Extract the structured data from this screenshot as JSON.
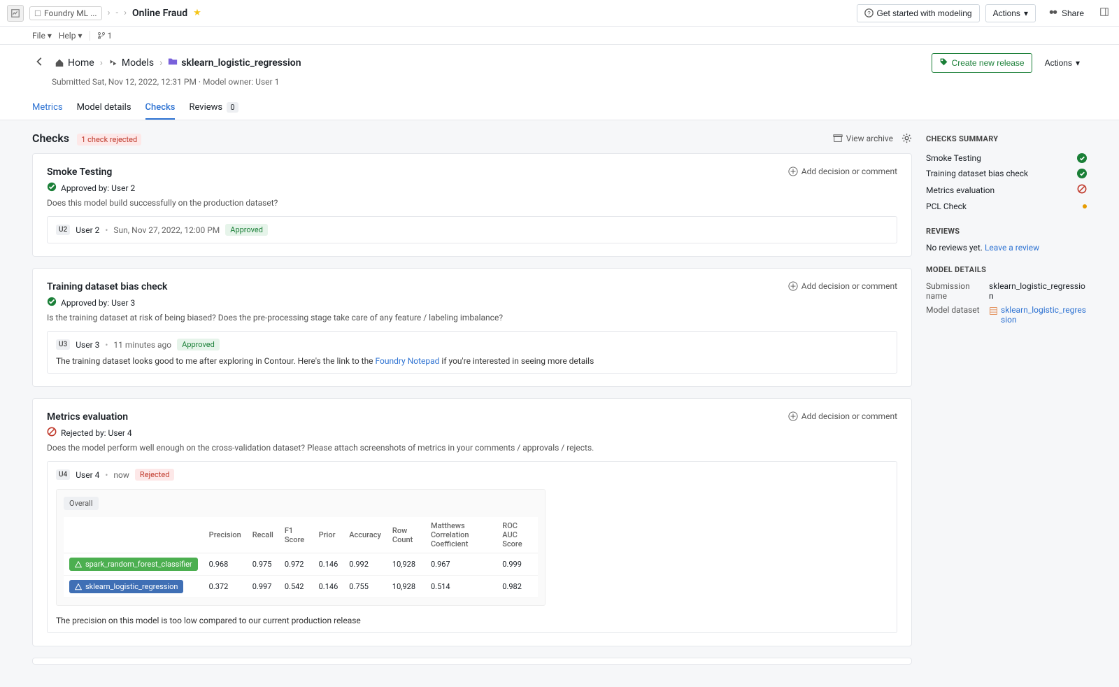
{
  "topbar": {
    "crumb_app": "Foundry ML ...",
    "page": "Online Fraud",
    "get_started": "Get started with modeling",
    "actions": "Actions",
    "share": "Share"
  },
  "menubar": {
    "file": "File",
    "help": "Help",
    "branch_count": "1"
  },
  "header": {
    "home": "Home",
    "models": "Models",
    "model_name": "sklearn_logistic_regression",
    "submitted": "Submitted Sat, Nov 12, 2022, 12:31 PM · Model owner: User 1",
    "create_release": "Create new release",
    "actions": "Actions"
  },
  "tabs": {
    "metrics": "Metrics",
    "model_details": "Model details",
    "checks": "Checks",
    "reviews": "Reviews",
    "reviews_count": "0"
  },
  "section": {
    "title": "Checks",
    "rejected_badge": "1 check rejected",
    "view_archive": "View archive"
  },
  "checks": {
    "smoke": {
      "title": "Smoke Testing",
      "approval": "Approved by: User 2",
      "desc": "Does this model build successfully on the production dataset?",
      "comment": {
        "avatar": "U2",
        "user": "User 2",
        "time": "Sun, Nov 27, 2022, 12:00 PM",
        "status": "Approved"
      }
    },
    "bias": {
      "title": "Training dataset bias check",
      "approval": "Approved by: User 3",
      "desc": "Is the training dataset at risk of being biased? Does the pre-processing stage take care of any feature / labeling imbalance?",
      "comment": {
        "avatar": "U3",
        "user": "User 3",
        "time": "11 minutes ago",
        "status": "Approved",
        "body_pre": "The training dataset looks good to me after exploring in Contour. Here's the link to the ",
        "body_link": "Foundry Notepad",
        "body_post": " if you're interested in seeing more details"
      }
    },
    "metrics": {
      "title": "Metrics evaluation",
      "approval": "Rejected by: User 4",
      "desc": "Does the model perform well enough on the cross-validation dataset? Please attach screenshots of metrics in your comments / approvals / rejects.",
      "comment": {
        "avatar": "U4",
        "user": "User 4",
        "time": "now",
        "status": "Rejected",
        "body": "The precision on this model is too low compared to our current production release"
      }
    }
  },
  "add_comment": "Add decision or comment",
  "metrics_table": {
    "tab": "Overall",
    "cols": [
      "Precision",
      "Recall",
      "F1 Score",
      "Prior",
      "Accuracy",
      "Row Count",
      "Matthews Correlation Coefficient",
      "ROC AUC Score"
    ],
    "rows": [
      {
        "name": "spark_random_forest_classifier",
        "color": "mp-green",
        "vals": [
          "0.968",
          "0.975",
          "0.972",
          "0.146",
          "0.992",
          "10,928",
          "0.967",
          "0.999"
        ]
      },
      {
        "name": "sklearn_logistic_regression",
        "color": "mp-blue",
        "vals": [
          "0.372",
          "0.997",
          "0.542",
          "0.146",
          "0.755",
          "10,928",
          "0.514",
          "0.982"
        ]
      }
    ]
  },
  "sidebar": {
    "summary_h": "CHECKS SUMMARY",
    "items": [
      {
        "label": "Smoke Testing",
        "status": "green"
      },
      {
        "label": "Training dataset bias check",
        "status": "green"
      },
      {
        "label": "Metrics evaluation",
        "status": "red"
      },
      {
        "label": "PCL Check",
        "status": "amber"
      }
    ],
    "reviews_h": "REVIEWS",
    "no_reviews": "No reviews yet. ",
    "leave_review": "Leave a review",
    "details_h": "MODEL DETAILS",
    "submission_k": "Submission name",
    "submission_v": "sklearn_logistic_regression",
    "dataset_k": "Model dataset",
    "dataset_v": "sklearn_logistic_regression"
  }
}
